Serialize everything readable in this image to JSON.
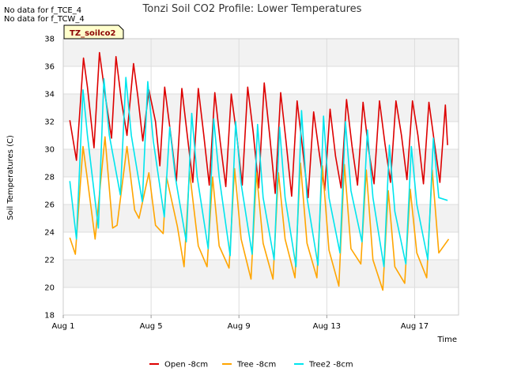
{
  "notices": [
    "No data for f_TCE_4",
    "No data for f_TCW_4"
  ],
  "tag_label": "TZ_soilco2",
  "chart_data": {
    "type": "line",
    "title": "Tonzi Soil CO2 Profile: Lower Temperatures",
    "xlabel": "Time",
    "ylabel": "Soil Temperatures (C)",
    "xlim": [
      0,
      18
    ],
    "ylim": [
      18,
      38
    ],
    "x_tick_values": [
      0,
      4,
      8,
      12,
      16
    ],
    "x_tick_labels": [
      "Aug 1",
      "Aug 5",
      "Aug 9",
      "Aug 13",
      "Aug 17"
    ],
    "y_ticks": [
      18,
      20,
      22,
      24,
      26,
      28,
      30,
      32,
      34,
      36,
      38
    ],
    "grid": true,
    "legend_position": "bottom-center",
    "colors": {
      "Open -8cm": "#dd0000",
      "Tree -8cm": "#ffa500",
      "Tree2 -8cm": "#00e5ee"
    },
    "x_unit": "days since Aug 1",
    "series": [
      {
        "name": "Open -8cm",
        "x": [
          0.3,
          0.6,
          0.92,
          1.1,
          1.4,
          1.65,
          1.9,
          2.2,
          2.4,
          2.65,
          2.9,
          3.2,
          3.4,
          3.62,
          3.9,
          4.2,
          4.4,
          4.62,
          4.9,
          5.15,
          5.4,
          5.65,
          5.9,
          6.15,
          6.4,
          6.65,
          6.9,
          7.15,
          7.4,
          7.65,
          7.9,
          8.15,
          8.4,
          8.65,
          8.9,
          9.15,
          9.4,
          9.65,
          9.9,
          10.15,
          10.4,
          10.65,
          10.9,
          11.15,
          11.4,
          11.65,
          11.9,
          12.15,
          12.4,
          12.65,
          12.9,
          13.15,
          13.4,
          13.65,
          13.9,
          14.15,
          14.4,
          14.65,
          14.9,
          15.15,
          15.4,
          15.65,
          15.9,
          16.15,
          16.4,
          16.65,
          16.9,
          17.15,
          17.4,
          17.5
        ],
        "y": [
          32.1,
          29.2,
          36.6,
          34.5,
          30.1,
          37.0,
          34.0,
          30.8,
          36.7,
          33.5,
          31.0,
          36.2,
          33.8,
          30.6,
          34.3,
          32.0,
          28.8,
          34.5,
          31.0,
          27.7,
          34.4,
          31.0,
          27.6,
          34.4,
          31.0,
          27.4,
          34.1,
          30.5,
          27.3,
          34.0,
          31.0,
          27.4,
          34.5,
          31.2,
          27.2,
          34.8,
          31.0,
          26.8,
          34.1,
          30.5,
          26.6,
          33.5,
          30.0,
          26.5,
          32.7,
          29.8,
          27.0,
          32.9,
          29.5,
          27.2,
          33.6,
          30.2,
          27.4,
          33.4,
          30.0,
          27.5,
          33.5,
          30.4,
          27.6,
          33.5,
          31.0,
          27.8,
          33.5,
          31.0,
          27.5,
          33.4,
          30.5,
          27.6,
          33.2,
          30.3
        ]
      },
      {
        "name": "Tree -8cm",
        "x": [
          0.3,
          0.55,
          0.9,
          1.1,
          1.45,
          1.9,
          2.25,
          2.45,
          2.9,
          3.25,
          3.45,
          3.9,
          4.2,
          4.55,
          4.7,
          5.2,
          5.5,
          5.75,
          6.15,
          6.55,
          6.8,
          7.1,
          7.55,
          7.8,
          8.1,
          8.55,
          8.8,
          9.1,
          9.55,
          9.8,
          10.1,
          10.55,
          10.8,
          11.1,
          11.55,
          11.8,
          12.1,
          12.55,
          12.8,
          13.1,
          13.55,
          13.8,
          14.1,
          14.55,
          14.8,
          15.1,
          15.55,
          15.8,
          16.1,
          16.55,
          16.8,
          17.1,
          17.55
        ],
        "y": [
          23.6,
          22.4,
          30.2,
          27.8,
          23.5,
          30.9,
          24.3,
          24.5,
          30.2,
          25.6,
          25.0,
          28.3,
          24.5,
          23.9,
          28.0,
          24.4,
          21.5,
          28.4,
          23.0,
          21.5,
          28.0,
          23.0,
          21.4,
          28.6,
          23.5,
          20.6,
          28.3,
          23.2,
          20.6,
          28.3,
          23.5,
          20.7,
          29.0,
          23.2,
          20.7,
          28.8,
          22.7,
          20.1,
          28.9,
          22.8,
          21.7,
          28.5,
          22.0,
          19.8,
          27.0,
          21.5,
          20.3,
          27.1,
          22.5,
          20.7,
          28.5,
          22.5,
          23.5
        ]
      },
      {
        "name": "Tree2 -8cm",
        "x": [
          0.3,
          0.6,
          0.9,
          1.1,
          1.6,
          1.85,
          2.1,
          2.6,
          2.85,
          3.1,
          3.6,
          3.85,
          4.1,
          4.6,
          4.85,
          5.1,
          5.6,
          5.85,
          6.1,
          6.6,
          6.85,
          7.1,
          7.6,
          7.85,
          8.1,
          8.6,
          8.85,
          9.1,
          9.6,
          9.85,
          10.1,
          10.6,
          10.85,
          11.1,
          11.6,
          11.85,
          12.1,
          12.6,
          12.85,
          13.1,
          13.6,
          13.85,
          14.1,
          14.6,
          14.85,
          15.1,
          15.6,
          15.85,
          16.1,
          16.6,
          16.85,
          17.1,
          17.5
        ],
        "y": [
          27.7,
          23.5,
          34.3,
          31.0,
          24.3,
          35.1,
          31.0,
          26.7,
          35.2,
          31.0,
          26.2,
          34.9,
          30.6,
          25.1,
          31.6,
          28.0,
          23.3,
          32.6,
          28.0,
          22.8,
          32.2,
          28.0,
          22.3,
          32.0,
          27.5,
          22.4,
          31.8,
          26.5,
          22.0,
          31.6,
          26.5,
          21.5,
          32.8,
          26.5,
          21.6,
          32.4,
          26.5,
          22.5,
          32.0,
          27.0,
          23.3,
          31.4,
          26.5,
          21.5,
          30.3,
          25.5,
          21.7,
          30.2,
          26.0,
          22.0,
          30.8,
          26.5,
          26.3
        ]
      }
    ]
  }
}
